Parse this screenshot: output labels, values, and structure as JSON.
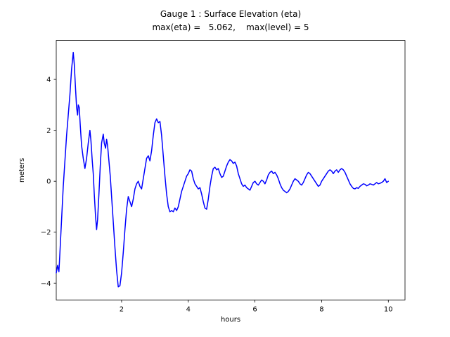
{
  "figure": {
    "background": "#ffffff"
  },
  "chart_data": {
    "type": "line",
    "title": "Gauge 1 : Surface Elevation (eta)",
    "subtitle": "max(eta) =   5.062,    max(level) = 5",
    "xlabel": "hours",
    "ylabel": "meters",
    "xlim": [
      0.04,
      10.5
    ],
    "ylim": [
      -4.66,
      5.53
    ],
    "xtick_values": [
      2,
      4,
      6,
      8,
      10
    ],
    "xtick_labels": [
      "2",
      "4",
      "6",
      "8",
      "10"
    ],
    "ytick_values": [
      -4,
      -2,
      0,
      2,
      4
    ],
    "ytick_labels": [
      "−4",
      "−2",
      "0",
      "2",
      "4"
    ],
    "grid": false,
    "legend": null,
    "line_color": "#0000ff",
    "line_width": 1.5,
    "max_eta": 5.062,
    "max_level": 5,
    "points": [
      [
        0.04,
        -3.6
      ],
      [
        0.08,
        -3.3
      ],
      [
        0.12,
        -3.55
      ],
      [
        0.15,
        -2.8
      ],
      [
        0.2,
        -1.5
      ],
      [
        0.25,
        -0.2
      ],
      [
        0.3,
        0.8
      ],
      [
        0.35,
        1.8
      ],
      [
        0.4,
        2.6
      ],
      [
        0.45,
        3.4
      ],
      [
        0.5,
        4.4
      ],
      [
        0.55,
        5.06
      ],
      [
        0.58,
        4.6
      ],
      [
        0.62,
        3.6
      ],
      [
        0.65,
        2.9
      ],
      [
        0.68,
        2.6
      ],
      [
        0.7,
        3.0
      ],
      [
        0.73,
        2.9
      ],
      [
        0.76,
        2.2
      ],
      [
        0.8,
        1.4
      ],
      [
        0.85,
        0.9
      ],
      [
        0.9,
        0.5
      ],
      [
        0.95,
        0.9
      ],
      [
        1.0,
        1.5
      ],
      [
        1.05,
        2.0
      ],
      [
        1.08,
        1.6
      ],
      [
        1.12,
        0.8
      ],
      [
        1.15,
        0.3
      ],
      [
        1.18,
        -0.5
      ],
      [
        1.22,
        -1.4
      ],
      [
        1.25,
        -1.9
      ],
      [
        1.28,
        -1.5
      ],
      [
        1.32,
        -0.5
      ],
      [
        1.36,
        0.6
      ],
      [
        1.4,
        1.5
      ],
      [
        1.45,
        1.85
      ],
      [
        1.48,
        1.5
      ],
      [
        1.52,
        1.3
      ],
      [
        1.55,
        1.65
      ],
      [
        1.58,
        1.4
      ],
      [
        1.62,
        0.8
      ],
      [
        1.66,
        0.2
      ],
      [
        1.7,
        -0.6
      ],
      [
        1.75,
        -1.6
      ],
      [
        1.8,
        -2.6
      ],
      [
        1.85,
        -3.5
      ],
      [
        1.9,
        -4.15
      ],
      [
        1.95,
        -4.1
      ],
      [
        2.0,
        -3.6
      ],
      [
        2.05,
        -2.8
      ],
      [
        2.1,
        -1.9
      ],
      [
        2.15,
        -1.1
      ],
      [
        2.2,
        -0.6
      ],
      [
        2.25,
        -0.8
      ],
      [
        2.3,
        -1.0
      ],
      [
        2.35,
        -0.7
      ],
      [
        2.4,
        -0.3
      ],
      [
        2.45,
        -0.1
      ],
      [
        2.5,
        0.0
      ],
      [
        2.55,
        -0.2
      ],
      [
        2.6,
        -0.3
      ],
      [
        2.65,
        0.1
      ],
      [
        2.7,
        0.5
      ],
      [
        2.75,
        0.9
      ],
      [
        2.8,
        1.0
      ],
      [
        2.85,
        0.8
      ],
      [
        2.9,
        1.2
      ],
      [
        2.95,
        1.8
      ],
      [
        3.0,
        2.3
      ],
      [
        3.05,
        2.45
      ],
      [
        3.1,
        2.3
      ],
      [
        3.15,
        2.35
      ],
      [
        3.2,
        1.8
      ],
      [
        3.25,
        1.0
      ],
      [
        3.3,
        0.2
      ],
      [
        3.35,
        -0.5
      ],
      [
        3.4,
        -1.0
      ],
      [
        3.45,
        -1.2
      ],
      [
        3.5,
        -1.15
      ],
      [
        3.55,
        -1.2
      ],
      [
        3.6,
        -1.05
      ],
      [
        3.65,
        -1.15
      ],
      [
        3.7,
        -1.0
      ],
      [
        3.75,
        -0.7
      ],
      [
        3.8,
        -0.4
      ],
      [
        3.85,
        -0.2
      ],
      [
        3.9,
        0.0
      ],
      [
        3.95,
        0.2
      ],
      [
        4.0,
        0.3
      ],
      [
        4.05,
        0.45
      ],
      [
        4.1,
        0.4
      ],
      [
        4.15,
        0.1
      ],
      [
        4.2,
        -0.1
      ],
      [
        4.25,
        -0.2
      ],
      [
        4.3,
        -0.3
      ],
      [
        4.35,
        -0.25
      ],
      [
        4.4,
        -0.5
      ],
      [
        4.45,
        -0.8
      ],
      [
        4.5,
        -1.05
      ],
      [
        4.55,
        -1.1
      ],
      [
        4.6,
        -0.7
      ],
      [
        4.65,
        -0.2
      ],
      [
        4.7,
        0.2
      ],
      [
        4.75,
        0.5
      ],
      [
        4.8,
        0.55
      ],
      [
        4.85,
        0.45
      ],
      [
        4.9,
        0.5
      ],
      [
        4.95,
        0.3
      ],
      [
        5.0,
        0.15
      ],
      [
        5.05,
        0.2
      ],
      [
        5.1,
        0.4
      ],
      [
        5.15,
        0.6
      ],
      [
        5.2,
        0.75
      ],
      [
        5.25,
        0.85
      ],
      [
        5.3,
        0.8
      ],
      [
        5.35,
        0.7
      ],
      [
        5.4,
        0.75
      ],
      [
        5.45,
        0.6
      ],
      [
        5.5,
        0.3
      ],
      [
        5.55,
        0.1
      ],
      [
        5.6,
        -0.1
      ],
      [
        5.65,
        -0.2
      ],
      [
        5.7,
        -0.15
      ],
      [
        5.75,
        -0.25
      ],
      [
        5.8,
        -0.3
      ],
      [
        5.85,
        -0.35
      ],
      [
        5.9,
        -0.2
      ],
      [
        5.95,
        -0.05
      ],
      [
        6.0,
        0.0
      ],
      [
        6.05,
        -0.1
      ],
      [
        6.1,
        -0.15
      ],
      [
        6.15,
        -0.05
      ],
      [
        6.2,
        0.05
      ],
      [
        6.25,
        0.0
      ],
      [
        6.3,
        -0.1
      ],
      [
        6.35,
        0.05
      ],
      [
        6.4,
        0.25
      ],
      [
        6.45,
        0.35
      ],
      [
        6.5,
        0.4
      ],
      [
        6.55,
        0.3
      ],
      [
        6.6,
        0.35
      ],
      [
        6.65,
        0.25
      ],
      [
        6.7,
        0.1
      ],
      [
        6.75,
        -0.1
      ],
      [
        6.8,
        -0.25
      ],
      [
        6.85,
        -0.35
      ],
      [
        6.9,
        -0.4
      ],
      [
        6.95,
        -0.45
      ],
      [
        7.0,
        -0.4
      ],
      [
        7.05,
        -0.3
      ],
      [
        7.1,
        -0.15
      ],
      [
        7.15,
        0.0
      ],
      [
        7.2,
        0.1
      ],
      [
        7.25,
        0.05
      ],
      [
        7.3,
        0.0
      ],
      [
        7.35,
        -0.1
      ],
      [
        7.4,
        -0.15
      ],
      [
        7.45,
        -0.05
      ],
      [
        7.5,
        0.1
      ],
      [
        7.55,
        0.25
      ],
      [
        7.6,
        0.35
      ],
      [
        7.65,
        0.3
      ],
      [
        7.7,
        0.2
      ],
      [
        7.75,
        0.1
      ],
      [
        7.8,
        0.0
      ],
      [
        7.85,
        -0.1
      ],
      [
        7.9,
        -0.2
      ],
      [
        7.95,
        -0.15
      ],
      [
        8.0,
        0.0
      ],
      [
        8.05,
        0.1
      ],
      [
        8.1,
        0.2
      ],
      [
        8.15,
        0.3
      ],
      [
        8.2,
        0.4
      ],
      [
        8.25,
        0.45
      ],
      [
        8.3,
        0.4
      ],
      [
        8.35,
        0.3
      ],
      [
        8.4,
        0.4
      ],
      [
        8.45,
        0.45
      ],
      [
        8.5,
        0.35
      ],
      [
        8.55,
        0.45
      ],
      [
        8.6,
        0.5
      ],
      [
        8.65,
        0.45
      ],
      [
        8.7,
        0.35
      ],
      [
        8.75,
        0.2
      ],
      [
        8.8,
        0.05
      ],
      [
        8.85,
        -0.1
      ],
      [
        8.9,
        -0.2
      ],
      [
        8.95,
        -0.28
      ],
      [
        9.0,
        -0.3
      ],
      [
        9.05,
        -0.25
      ],
      [
        9.1,
        -0.28
      ],
      [
        9.15,
        -0.2
      ],
      [
        9.2,
        -0.15
      ],
      [
        9.25,
        -0.1
      ],
      [
        9.3,
        -0.12
      ],
      [
        9.35,
        -0.18
      ],
      [
        9.4,
        -0.15
      ],
      [
        9.45,
        -0.1
      ],
      [
        9.5,
        -0.12
      ],
      [
        9.55,
        -0.15
      ],
      [
        9.6,
        -0.1
      ],
      [
        9.65,
        -0.05
      ],
      [
        9.7,
        -0.1
      ],
      [
        9.75,
        -0.08
      ],
      [
        9.8,
        -0.05
      ],
      [
        9.85,
        0.0
      ],
      [
        9.9,
        0.1
      ],
      [
        9.95,
        -0.05
      ],
      [
        10.0,
        0.0
      ]
    ]
  }
}
